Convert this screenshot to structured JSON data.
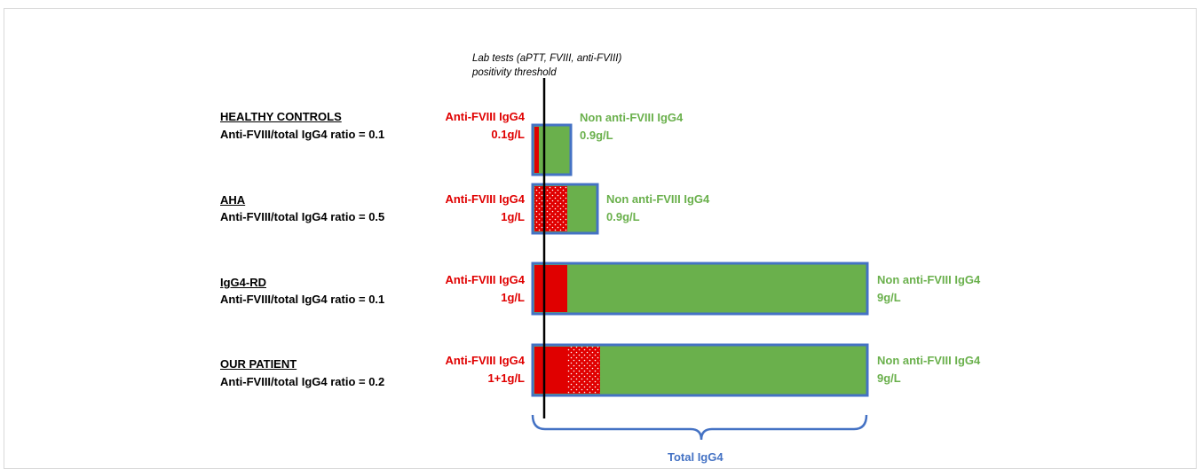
{
  "threshold_label": {
    "line1": "Lab tests (aPTT, FVIII, anti-FVIII)",
    "line2": "positivity threshold"
  },
  "groups": [
    {
      "title": "HEALTHY CONTROLS",
      "ratio": "Anti-FVIII/total IgG4 ratio = 0.1",
      "anti_label": "Anti-FVIII IgG4",
      "anti_value": "0.1g/L",
      "non_label": "Non anti-FVIII IgG4",
      "non_value": "0.9g/L"
    },
    {
      "title": "AHA",
      "ratio": "Anti-FVIII/total IgG4 ratio = 0.5",
      "anti_label": "Anti-FVIII IgG4",
      "anti_value": "1g/L",
      "non_label": "Non anti-FVIII IgG4",
      "non_value": "0.9g/L"
    },
    {
      "title": "IgG4-RD",
      "ratio": "Anti-FVIII/total IgG4 ratio = 0.1",
      "anti_label": "Anti-FVIII IgG4",
      "anti_value": "1g/L",
      "non_label": "Non anti-FVIII IgG4",
      "non_value": "9g/L"
    },
    {
      "title": "OUR PATIENT",
      "ratio": "Anti-FVIII/total IgG4 ratio = 0.2",
      "anti_label": "Anti-FVIII IgG4",
      "anti_value": "1+1g/L",
      "non_label": "Non anti-FVIII IgG4",
      "non_value": "9g/L"
    }
  ],
  "total_label": "Total IgG4",
  "colors": {
    "anti": "#e00000",
    "non": "#6ab04c",
    "border": "#4472c4",
    "threshold": "#000000"
  }
}
